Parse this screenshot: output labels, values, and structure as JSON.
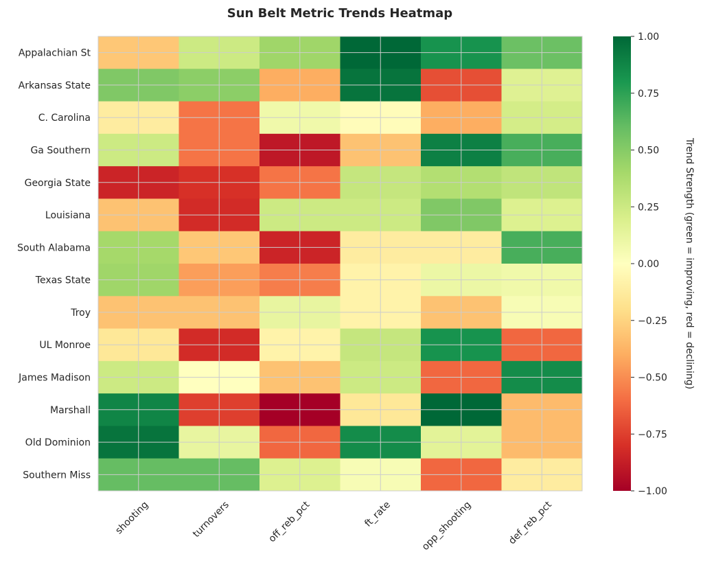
{
  "chart_data": {
    "type": "heatmap",
    "title": "Sun Belt Metric Trends Heatmap",
    "rows": [
      "Appalachian St",
      "Arkansas State",
      "C. Carolina",
      "Ga Southern",
      "Georgia State",
      "Louisiana",
      "South Alabama",
      "Texas State",
      "Troy",
      "UL Monroe",
      "James Madison",
      "Marshall",
      "Old Dominion",
      "Southern Miss"
    ],
    "columns": [
      "shooting",
      "turnovers",
      "off_reb_pct",
      "ft_rate",
      "opp_shooting",
      "def_reb_pct"
    ],
    "values": [
      [
        -0.3,
        0.25,
        0.42,
        1.0,
        0.82,
        0.58
      ],
      [
        0.52,
        0.48,
        -0.4,
        0.95,
        -0.7,
        0.17
      ],
      [
        -0.12,
        -0.58,
        0.08,
        -0.02,
        -0.4,
        0.22
      ],
      [
        0.25,
        -0.58,
        -0.9,
        -0.32,
        0.9,
        0.68
      ],
      [
        -0.85,
        -0.8,
        -0.58,
        0.28,
        0.35,
        0.3
      ],
      [
        -0.32,
        -0.82,
        0.25,
        0.25,
        0.52,
        0.18
      ],
      [
        0.4,
        -0.3,
        -0.85,
        -0.12,
        -0.12,
        0.68
      ],
      [
        0.42,
        -0.45,
        -0.55,
        -0.08,
        0.1,
        0.08
      ],
      [
        -0.32,
        -0.32,
        0.12,
        -0.08,
        -0.32,
        0.04
      ],
      [
        -0.15,
        -0.82,
        -0.08,
        0.28,
        0.82,
        -0.62
      ],
      [
        0.25,
        0.0,
        -0.32,
        0.25,
        -0.62,
        0.85
      ],
      [
        0.88,
        -0.75,
        -1.0,
        -0.15,
        1.0,
        -0.35
      ],
      [
        0.95,
        0.12,
        -0.62,
        0.85,
        0.15,
        -0.35
      ],
      [
        0.6,
        0.6,
        0.18,
        0.04,
        -0.62,
        -0.12
      ]
    ],
    "vmin": -1.0,
    "vmax": 1.0,
    "colormap": "RdYlGn",
    "colorbar_label": "Trend Strength (green = improving, red = declining)",
    "colorbar_ticks": [
      "−1.00",
      "−0.75",
      "−0.50",
      "−0.25",
      "0.00",
      "0.25",
      "0.50",
      "0.75",
      "1.00"
    ],
    "colorbar_tick_values": [
      -1.0,
      -0.75,
      -0.5,
      -0.25,
      0.0,
      0.25,
      0.5,
      0.75,
      1.0
    ]
  }
}
